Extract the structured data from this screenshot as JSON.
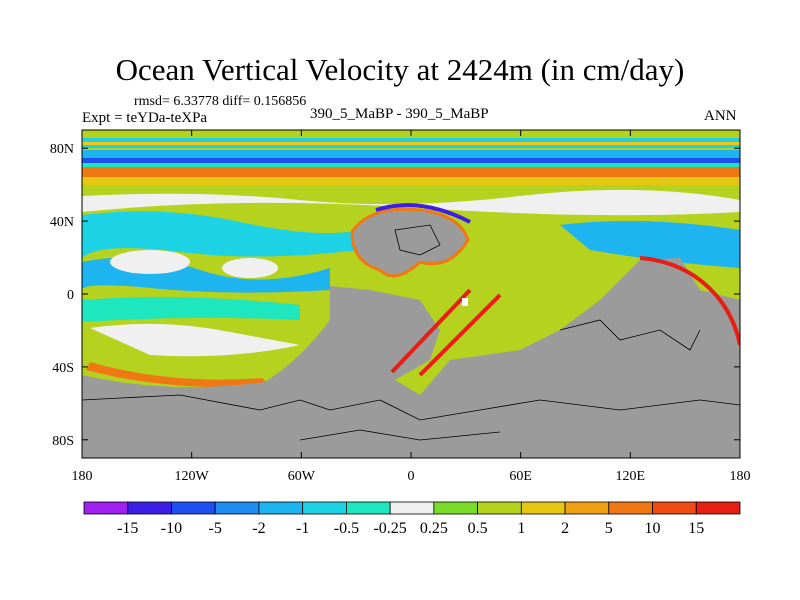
{
  "header": {
    "title": "Ocean Vertical Velocity at 2424m (in cm/day)",
    "stats": "rmsd= 6.33778 diff= 0.156856",
    "expt": "Expt = teYDa-teXPa",
    "cases": "390_5_MaBP - 390_5_MaBP",
    "season": "ANN"
  },
  "chart_data": {
    "type": "heatmap",
    "title": "Ocean Vertical Velocity at 2424m (in cm/day)",
    "units": "cm/day",
    "x_ticks": [
      "180",
      "120W",
      "60W",
      "0",
      "60E",
      "120E",
      "180"
    ],
    "x_values": [
      -180,
      -120,
      -60,
      0,
      60,
      120,
      180
    ],
    "y_ticks": [
      "80N",
      "40N",
      "0",
      "40S",
      "80S"
    ],
    "y_values": [
      80,
      40,
      0,
      -40,
      -80
    ],
    "xlim": [
      -180,
      180
    ],
    "ylim": [
      -90,
      90
    ],
    "colorbar": {
      "labels": [
        "-15",
        "-10",
        "-5",
        "-2",
        "-1",
        "-0.5",
        "-0.25",
        "0.25",
        "0.5",
        "1",
        "2",
        "5",
        "10",
        "15"
      ],
      "colors": [
        "#a020f0",
        "#3c1ee6",
        "#1e50f0",
        "#1e8cf0",
        "#1eb4f0",
        "#1ed2e6",
        "#1ee6be",
        "#f0f0f0",
        "#78dc28",
        "#b4d21e",
        "#e6c814",
        "#f0a014",
        "#f07814",
        "#f04b14",
        "#e61e14"
      ]
    },
    "colors": {
      "land": "#9b9b9b",
      "frame": "#000000"
    }
  }
}
